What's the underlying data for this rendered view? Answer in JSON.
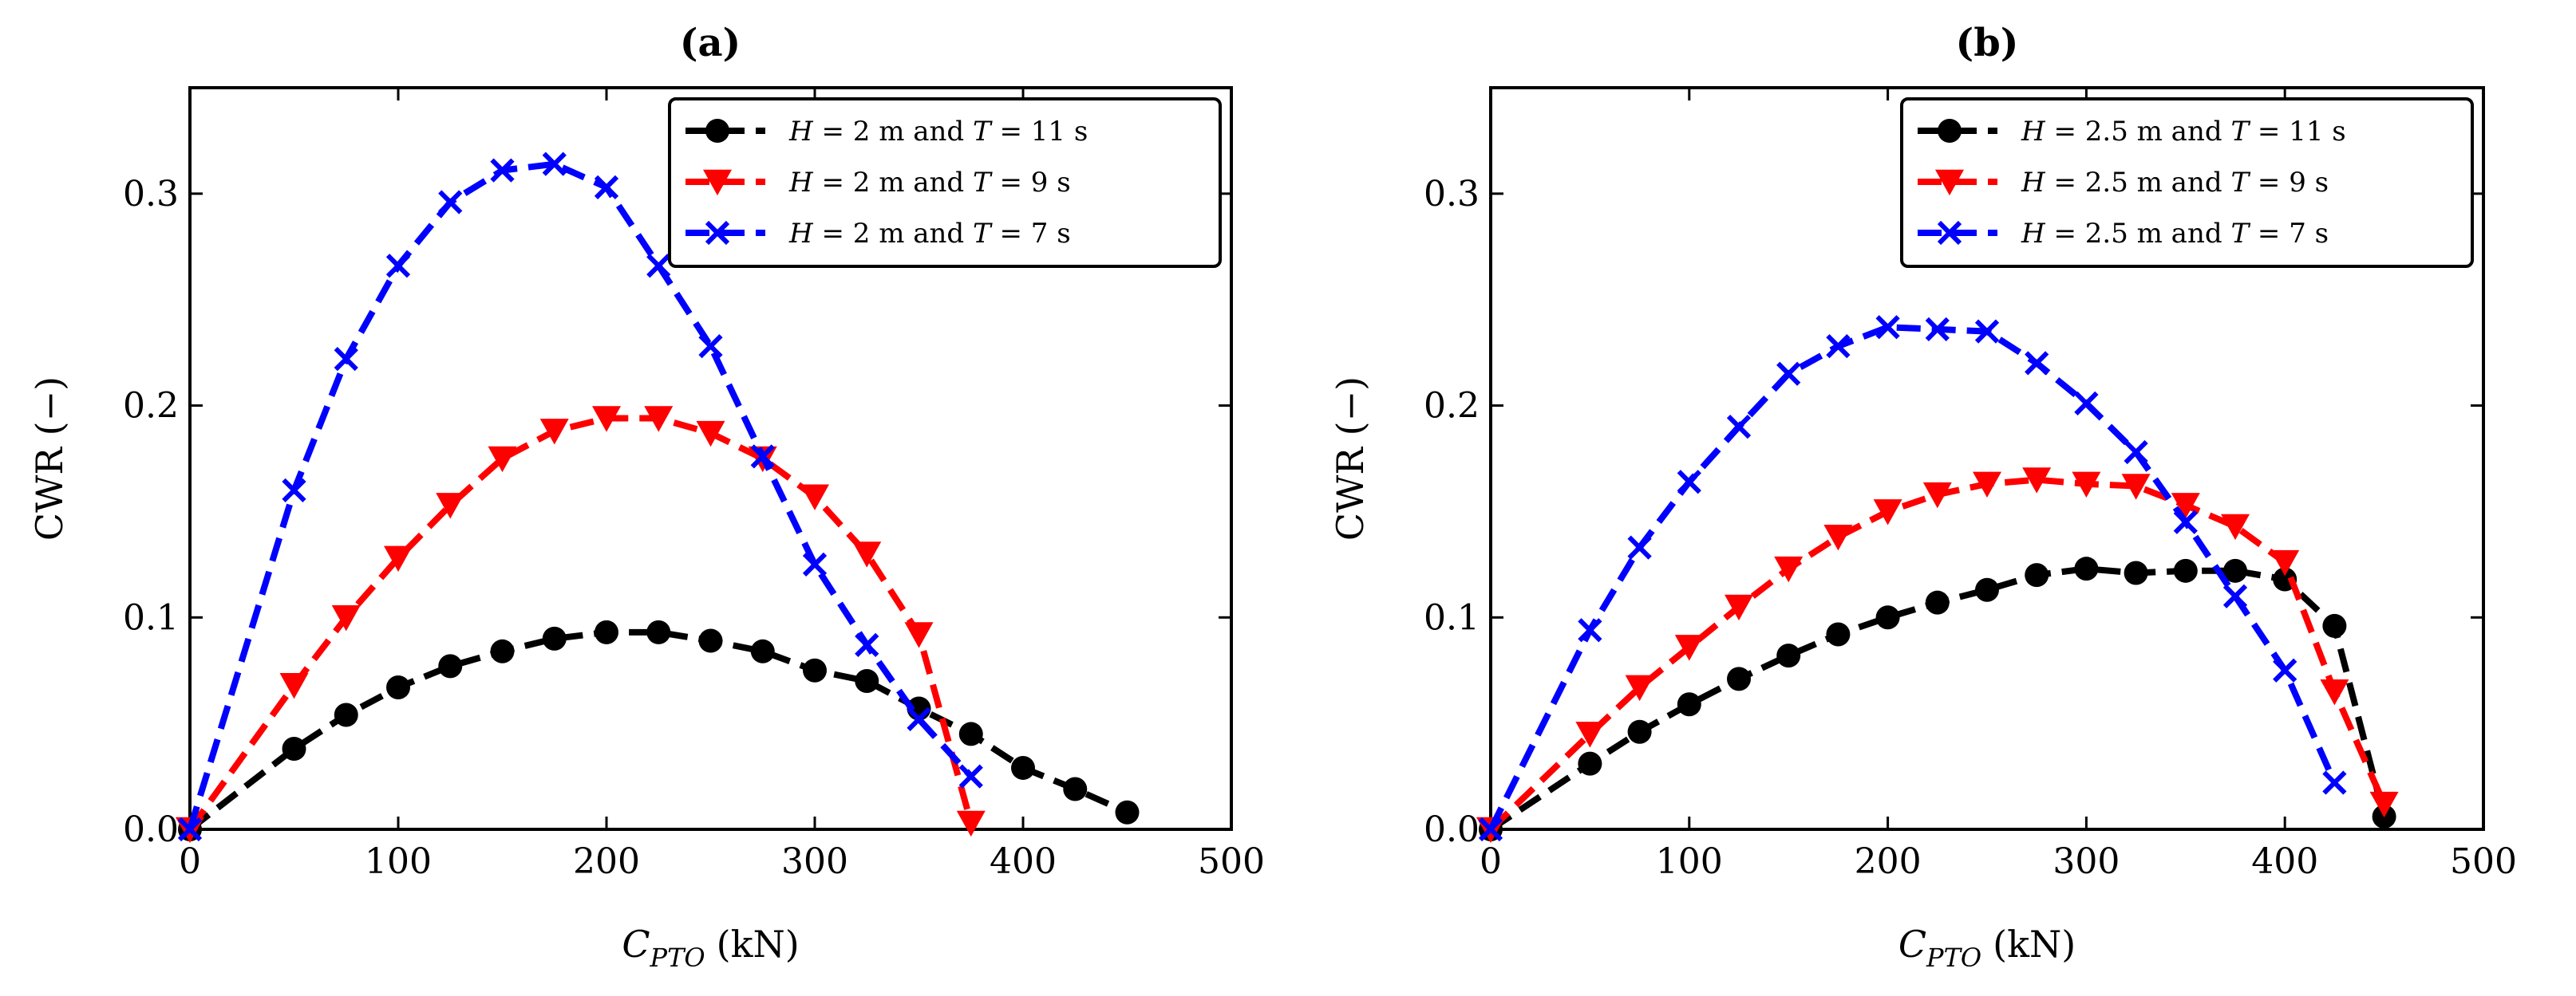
{
  "chart_data": [
    {
      "panel": "a",
      "type": "line",
      "title": "(a)",
      "xlabel_main": "C",
      "xlabel_sub": "PTO",
      "xlabel_unit": "(kN)",
      "ylabel": "CWR (−)",
      "xlim": [
        0,
        500
      ],
      "ylim": [
        0,
        0.35
      ],
      "xticks": [
        0,
        100,
        200,
        300,
        400,
        500
      ],
      "yticks": [
        0.0,
        0.1,
        0.2,
        0.3
      ],
      "xtick_labels": [
        "0",
        "100",
        "200",
        "300",
        "400",
        "500"
      ],
      "ytick_labels": [
        "0.0",
        "0.1",
        "0.2",
        "0.3"
      ],
      "legend_position": "top-right",
      "series": [
        {
          "name": "H = 2 m and T = 11 s",
          "legend": {
            "h": "H",
            "hval": " = 2 m and ",
            "t": "T",
            "tval": " = 11 s"
          },
          "color": "#000000",
          "marker": "circle",
          "x": [
            0,
            50,
            75,
            100,
            125,
            150,
            175,
            200,
            225,
            250,
            275,
            300,
            325,
            350,
            375,
            400,
            425,
            450
          ],
          "y": [
            0.0,
            0.038,
            0.054,
            0.067,
            0.077,
            0.084,
            0.09,
            0.093,
            0.093,
            0.089,
            0.084,
            0.075,
            0.07,
            0.057,
            0.045,
            0.029,
            0.019,
            0.008
          ]
        },
        {
          "name": "H = 2 m and T = 9 s",
          "legend": {
            "h": "H",
            "hval": " = 2 m and ",
            "t": "T",
            "tval": " = 9 s"
          },
          "color": "#ff0000",
          "marker": "triangle-down",
          "x": [
            0,
            50,
            75,
            100,
            125,
            150,
            175,
            200,
            225,
            250,
            275,
            300,
            325,
            350,
            375
          ],
          "y": [
            0.0,
            0.068,
            0.1,
            0.128,
            0.153,
            0.175,
            0.188,
            0.194,
            0.194,
            0.187,
            0.175,
            0.157,
            0.13,
            0.092,
            0.003
          ]
        },
        {
          "name": "H = 2 m and T = 7 s",
          "legend": {
            "h": "H",
            "hval": " = 2 m and ",
            "t": "T",
            "tval": " = 7 s"
          },
          "color": "#0000ff",
          "marker": "x",
          "x": [
            0,
            50,
            75,
            100,
            125,
            150,
            175,
            200,
            225,
            250,
            275,
            300,
            325,
            350,
            375
          ],
          "y": [
            0.0,
            0.16,
            0.222,
            0.266,
            0.296,
            0.311,
            0.314,
            0.303,
            0.266,
            0.228,
            0.176,
            0.125,
            0.087,
            0.052,
            0.025
          ]
        }
      ]
    },
    {
      "panel": "b",
      "type": "line",
      "title": "(b)",
      "xlabel_main": "C",
      "xlabel_sub": "PTO",
      "xlabel_unit": "(kN)",
      "ylabel": "CWR (−)",
      "xlim": [
        0,
        500
      ],
      "ylim": [
        0,
        0.35
      ],
      "xticks": [
        0,
        100,
        200,
        300,
        400,
        500
      ],
      "yticks": [
        0.0,
        0.1,
        0.2,
        0.3
      ],
      "xtick_labels": [
        "0",
        "100",
        "200",
        "300",
        "400",
        "500"
      ],
      "ytick_labels": [
        "0.0",
        "0.1",
        "0.2",
        "0.3"
      ],
      "legend_position": "top-right",
      "series": [
        {
          "name": "H = 2.5 m and T = 11 s",
          "legend": {
            "h": "H",
            "hval": " = 2.5 m and ",
            "t": "T",
            "tval": " = 11 s"
          },
          "color": "#000000",
          "marker": "circle",
          "x": [
            0,
            50,
            75,
            100,
            125,
            150,
            175,
            200,
            225,
            250,
            275,
            300,
            325,
            350,
            375,
            400,
            425,
            450
          ],
          "y": [
            0.0,
            0.031,
            0.046,
            0.059,
            0.071,
            0.082,
            0.092,
            0.1,
            0.107,
            0.113,
            0.12,
            0.123,
            0.121,
            0.122,
            0.122,
            0.118,
            0.096,
            0.006
          ]
        },
        {
          "name": "H = 2.5 m and T = 9 s",
          "legend": {
            "h": "H",
            "hval": " = 2.5 m and ",
            "t": "T",
            "tval": " = 9 s"
          },
          "color": "#ff0000",
          "marker": "triangle-down",
          "x": [
            0,
            50,
            75,
            100,
            125,
            150,
            175,
            200,
            225,
            250,
            275,
            300,
            325,
            350,
            375,
            400,
            425,
            450
          ],
          "y": [
            0.0,
            0.045,
            0.067,
            0.086,
            0.105,
            0.123,
            0.138,
            0.15,
            0.158,
            0.163,
            0.165,
            0.163,
            0.162,
            0.153,
            0.143,
            0.126,
            0.065,
            0.012
          ]
        },
        {
          "name": "H = 2.5 m and T = 7 s",
          "legend": {
            "h": "H",
            "hval": " = 2.5 m and ",
            "t": "T",
            "tval": " = 7 s"
          },
          "color": "#0000ff",
          "marker": "x",
          "x": [
            0,
            50,
            75,
            100,
            125,
            150,
            175,
            200,
            225,
            250,
            275,
            300,
            325,
            350,
            375,
            400,
            425
          ],
          "y": [
            0.0,
            0.094,
            0.133,
            0.164,
            0.19,
            0.215,
            0.228,
            0.237,
            0.236,
            0.235,
            0.22,
            0.201,
            0.178,
            0.145,
            0.11,
            0.075,
            0.022
          ]
        }
      ]
    }
  ]
}
